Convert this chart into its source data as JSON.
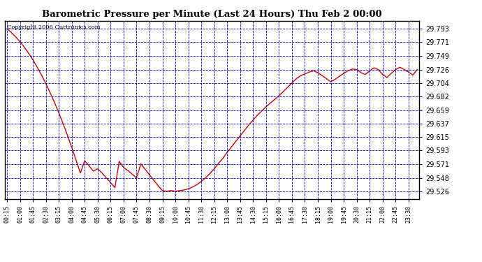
{
  "title": "Barometric Pressure per Minute (Last 24 Hours) Thu Feb 2 00:00",
  "copyright": "Copyright 2006 Curtronics.com",
  "line_color": "#cc0000",
  "bg_color": "#ffffff",
  "grid_color": "#0000bb",
  "axis_label_color": "#000000",
  "yticks": [
    29.526,
    29.548,
    29.571,
    29.593,
    29.615,
    29.637,
    29.659,
    29.682,
    29.704,
    29.726,
    29.749,
    29.771,
    29.793
  ],
  "ylim": [
    29.513,
    29.806
  ],
  "xtick_labels": [
    "00:15",
    "01:00",
    "01:45",
    "02:30",
    "03:15",
    "04:00",
    "04:45",
    "05:30",
    "06:15",
    "07:00",
    "07:45",
    "08:30",
    "09:15",
    "10:00",
    "10:45",
    "11:30",
    "12:15",
    "13:00",
    "13:45",
    "14:30",
    "15:15",
    "16:00",
    "16:45",
    "17:30",
    "18:15",
    "19:00",
    "19:45",
    "20:30",
    "21:15",
    "22:00",
    "22:45",
    "23:30"
  ],
  "pressure_data": [
    29.793,
    29.787,
    29.78,
    29.772,
    29.763,
    29.753,
    29.742,
    29.73,
    29.717,
    29.703,
    29.688,
    29.672,
    29.655,
    29.637,
    29.618,
    29.598,
    29.577,
    29.556,
    29.576,
    29.568,
    29.559,
    29.563,
    29.556,
    29.548,
    29.54,
    29.532,
    29.575,
    29.565,
    29.56,
    29.554,
    29.548,
    29.571,
    29.562,
    29.553,
    29.544,
    29.535,
    29.527,
    29.526,
    29.527,
    29.526,
    29.527,
    29.528,
    29.53,
    29.533,
    29.537,
    29.542,
    29.548,
    29.555,
    29.563,
    29.572,
    29.58,
    29.59,
    29.599,
    29.608,
    29.617,
    29.626,
    29.635,
    29.643,
    29.651,
    29.658,
    29.665,
    29.671,
    29.677,
    29.683,
    29.69,
    29.697,
    29.704,
    29.711,
    29.716,
    29.719,
    29.722,
    29.724,
    29.721,
    29.716,
    29.711,
    29.706,
    29.71,
    29.715,
    29.72,
    29.724,
    29.727,
    29.726,
    29.721,
    29.718,
    29.724,
    29.729,
    29.726,
    29.718,
    29.713,
    29.72,
    29.726,
    29.73,
    29.726,
    29.722,
    29.717,
    29.726
  ]
}
